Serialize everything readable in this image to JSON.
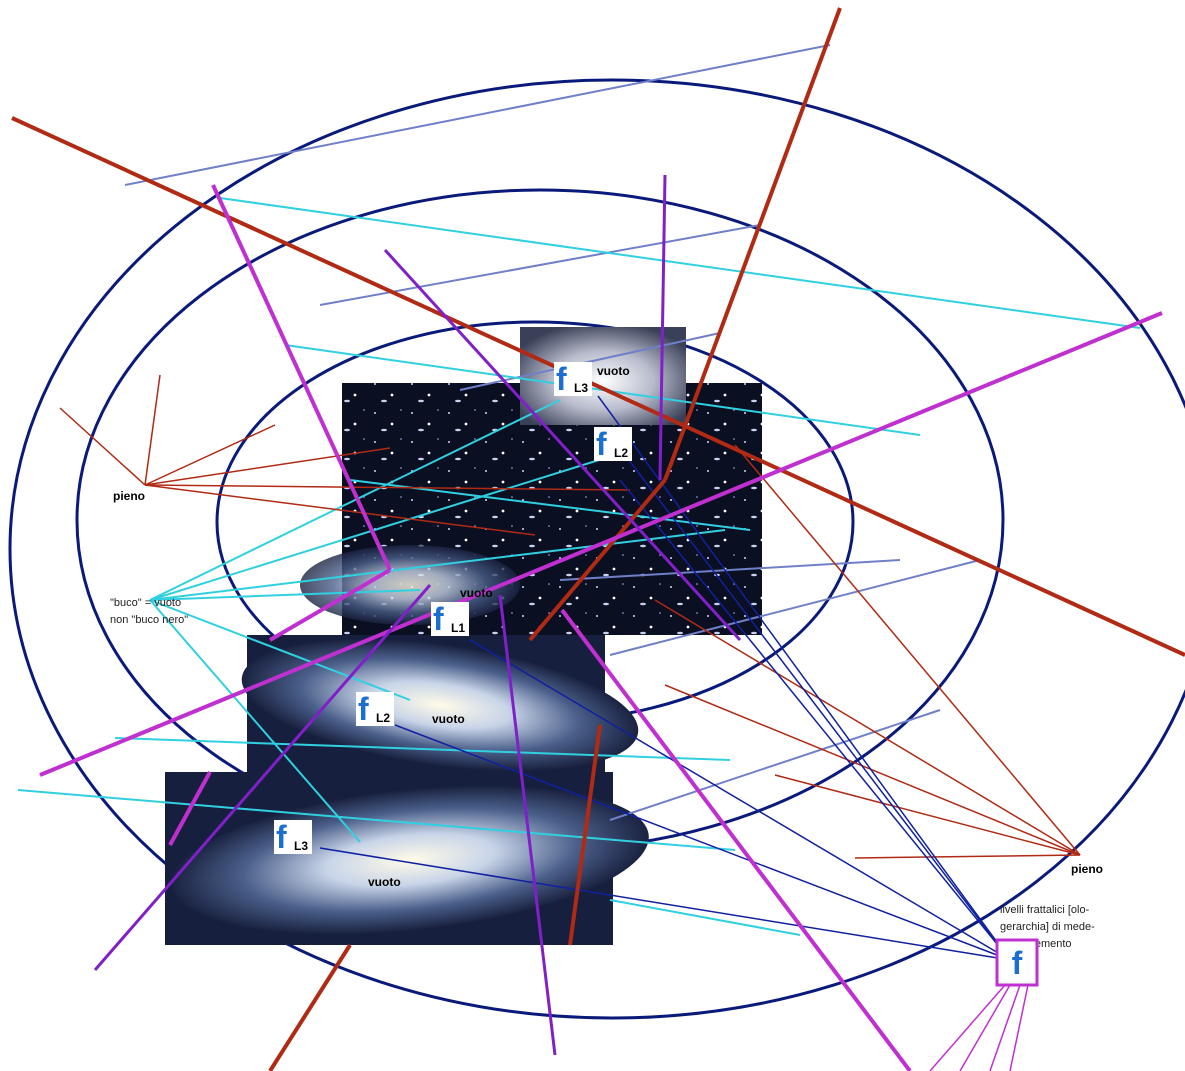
{
  "markers": [
    {
      "f": "f",
      "sub": "L3"
    },
    {
      "f": "f",
      "sub": "L2"
    },
    {
      "f": "f",
      "sub": "L1"
    },
    {
      "f": "f",
      "sub": "L2"
    },
    {
      "f": "f",
      "sub": "L3"
    }
  ],
  "vuoto_labels": [
    "vuoto",
    "vuoto",
    "vuoto",
    "vuoto"
  ],
  "pieno_labels": [
    "pieno",
    "pieno"
  ],
  "buco_note": [
    "\"buco\" = vuoto",
    "non \"buco nero\""
  ],
  "legend": {
    "lines": [
      "livelli frattalici [olo-",
      "gerarchia] di mede-",
      "simo elemento"
    ],
    "symbol": "f"
  }
}
